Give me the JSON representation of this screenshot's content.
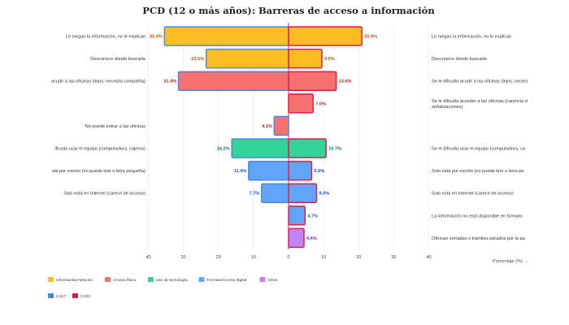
{
  "chart_data": {
    "type": "bar",
    "orientation": "horizontal-butterfly",
    "title": "PCD (12 o más años): Barreras de acceso a información",
    "xlabel": "Porcentaje (%) →",
    "xlim": [
      -40,
      40
    ],
    "xticks": [
      40,
      30,
      20,
      10,
      0,
      10,
      20,
      30,
      40
    ],
    "left_series_name": "2,017",
    "right_series_name": "2,022",
    "rows": [
      {
        "left_label": "Le niegan la información, no le explican",
        "right_label": "Le niegan la información, no le explican",
        "category": "info",
        "left": 35.4,
        "right": 20.9,
        "left_text": "35.4%",
        "right_text": "20.9%"
      },
      {
        "left_label": "Desconoce dónde buscarla",
        "right_label": "Desconoce dónde buscarla",
        "category": "info",
        "left": 23.5,
        "right": 9.5,
        "left_text": "23.5%",
        "right_text": "9.5%"
      },
      {
        "left_label": "acudir a las oficinas (lejos, necesita compañía)",
        "right_label": "Se le dificulta acudir a las oficinas (lejos, necesi",
        "category": "fisico",
        "left": 31.4,
        "right": 13.6,
        "left_text": "31.4%",
        "right_text": "13.6%"
      },
      {
        "left_label": "",
        "right_label": "Se le dificulta acceder a las oficinas (carencia d\nseñalizaciones)",
        "category": "fisico",
        "left": null,
        "right": 7.0,
        "left_text": "",
        "right_text": "7.0%"
      },
      {
        "left_label": "No puede entrar a las oficinas",
        "right_label": "",
        "category": "fisico",
        "left": 4.1,
        "right": null,
        "left_text": "4.1%",
        "right_text": ""
      },
      {
        "left_label": "ificulta usar el equipo (computadora, cajeros)",
        "right_label": "Se le dificulta usar el equipo (computadora, ca",
        "category": "tecno",
        "left": 16.2,
        "right": 10.7,
        "left_text": "16.2%",
        "right_text": "10.7%"
      },
      {
        "left_label": "stá por escrito (no puede leer o letra pequeña)",
        "right_label": "Solo está por escrito (no puede leer o letra pe",
        "category": "formato",
        "left": 11.4,
        "right": 6.6,
        "left_text": "11.4%",
        "right_text": "6.6%"
      },
      {
        "left_label": "Solo está en Internet (carece de acceso)",
        "right_label": "Solo está en Internet (carece de acceso)",
        "category": "formato",
        "left": 7.7,
        "right": 8.0,
        "left_text": "7.7%",
        "right_text": "8.0%"
      },
      {
        "left_label": "",
        "right_label": "La información no está disponible en formato",
        "category": "formato",
        "left": null,
        "right": 4.7,
        "left_text": "",
        "right_text": "4.7%"
      },
      {
        "left_label": "",
        "right_label": "Oficinas cerradas o trámites parados por la pa",
        "category": "otros",
        "left": null,
        "right": 4.4,
        "left_text": "",
        "right_text": "4.4%"
      }
    ],
    "categories": {
      "info": {
        "name": "Información/Atención",
        "fill": "#FBBD22",
        "text": "#B45309"
      },
      "fisico": {
        "name": "Acceso físico",
        "fill": "#F87171",
        "text": "#B91C1C"
      },
      "tecno": {
        "name": "Uso de tecnología",
        "fill": "#34D399",
        "text": "#047857"
      },
      "formato": {
        "name": "Formato/Acceso digital",
        "fill": "#60A5FA",
        "text": "#1D4ED8"
      },
      "otros": {
        "name": "Otros",
        "fill": "#C084FC",
        "text": "#7E22CE"
      }
    },
    "category_order": [
      "info",
      "fisico",
      "tecno",
      "formato",
      "otros"
    ],
    "year_legend": [
      {
        "name": "2,017",
        "color": "#4A86E8"
      },
      {
        "name": "2,022",
        "color": "#E11D48"
      }
    ],
    "left_border_color": "#4A86E8",
    "right_border_color": "#E11D48",
    "center_line_color": "#E11D48"
  }
}
